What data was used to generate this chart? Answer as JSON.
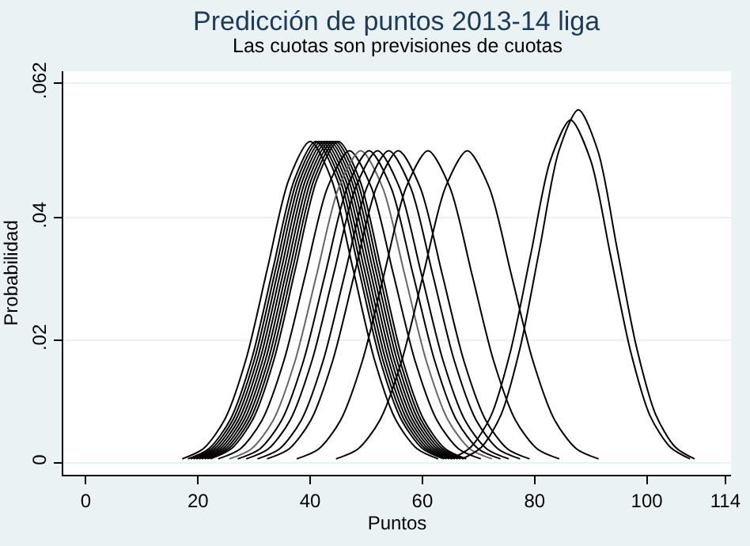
{
  "chart_data": {
    "type": "line",
    "title": "Predicción de puntos 2013-14 liga",
    "subtitle": "Las cuotas son previsiones de cuotas",
    "xlabel": "Puntos",
    "ylabel": "Probabilidad",
    "xlim": [
      -4,
      115
    ],
    "xticks": [
      0,
      20,
      40,
      60,
      80,
      100,
      114
    ],
    "ylim": [
      -0.002,
      0.064
    ],
    "yticks": [
      0,
      {
        "value": 0.02,
        "label": ".02"
      },
      {
        "value": 0.04,
        "label": ".04"
      },
      {
        "value": 0.062,
        "label": ".062"
      }
    ],
    "grid": "y",
    "marker": "none",
    "line_style": "solid",
    "series": [
      {
        "color": "#000000",
        "x": [
          17.2,
          21,
          24.8,
          28.6,
          32.4,
          36.2,
          40,
          43.8,
          47.6,
          51.4,
          55.2,
          59,
          62.8
        ],
        "values": [
          0.0006,
          0.0023,
          0.0071,
          0.017,
          0.0318,
          0.0463,
          0.0525,
          0.0463,
          0.0318,
          0.017,
          0.0071,
          0.0023,
          0.0006
        ]
      },
      {
        "color": "#000000",
        "x": [
          18.2,
          22,
          25.8,
          29.6,
          33.4,
          37.2,
          41,
          44.8,
          48.6,
          52.4,
          56.2,
          60,
          63.8
        ],
        "values": [
          0.0006,
          0.0023,
          0.0071,
          0.017,
          0.0318,
          0.0463,
          0.0525,
          0.0463,
          0.0318,
          0.017,
          0.0071,
          0.0023,
          0.0006
        ]
      },
      {
        "color": "#000000",
        "x": [
          18.7,
          22.5,
          26.3,
          30.1,
          33.9,
          37.7,
          41.5,
          45.3,
          49.1,
          52.9,
          56.7,
          60.5,
          64.3
        ],
        "values": [
          0.0006,
          0.0023,
          0.0071,
          0.017,
          0.0318,
          0.0463,
          0.0525,
          0.0463,
          0.0318,
          0.017,
          0.0071,
          0.0023,
          0.0006
        ]
      },
      {
        "color": "#000000",
        "x": [
          19.2,
          23,
          26.8,
          30.6,
          34.4,
          38.2,
          42,
          45.8,
          49.6,
          53.4,
          57.2,
          61,
          64.8
        ],
        "values": [
          0.0006,
          0.0023,
          0.0071,
          0.017,
          0.0318,
          0.0463,
          0.0525,
          0.0463,
          0.0318,
          0.017,
          0.0071,
          0.0023,
          0.0006
        ]
      },
      {
        "color": "#000000",
        "x": [
          19.7,
          23.5,
          27.3,
          31.1,
          34.9,
          38.7,
          42.5,
          46.3,
          50.1,
          53.9,
          57.7,
          61.5,
          65.3
        ],
        "values": [
          0.0006,
          0.0023,
          0.0071,
          0.017,
          0.0318,
          0.0463,
          0.0525,
          0.0463,
          0.0318,
          0.017,
          0.0071,
          0.0023,
          0.0006
        ]
      },
      {
        "color": "#000000",
        "x": [
          20.2,
          24,
          27.8,
          31.6,
          35.4,
          39.2,
          43,
          46.8,
          50.6,
          54.4,
          58.2,
          62,
          65.8
        ],
        "values": [
          0.0006,
          0.0023,
          0.0071,
          0.017,
          0.0318,
          0.0463,
          0.0525,
          0.0463,
          0.0318,
          0.017,
          0.0071,
          0.0023,
          0.0006
        ]
      },
      {
        "color": "#000000",
        "x": [
          20.7,
          24.5,
          28.3,
          32.1,
          35.9,
          39.7,
          43.5,
          47.3,
          51.1,
          54.9,
          58.7,
          62.5,
          66.3
        ],
        "values": [
          0.0006,
          0.0023,
          0.0071,
          0.017,
          0.0318,
          0.0463,
          0.0525,
          0.0463,
          0.0318,
          0.017,
          0.0071,
          0.0023,
          0.0006
        ]
      },
      {
        "color": "#000000",
        "x": [
          21.2,
          25,
          28.8,
          32.6,
          36.4,
          40.2,
          44,
          47.8,
          51.6,
          55.4,
          59.2,
          63,
          66.8
        ],
        "values": [
          0.0006,
          0.0023,
          0.0071,
          0.017,
          0.0318,
          0.0463,
          0.0525,
          0.0463,
          0.0318,
          0.017,
          0.0071,
          0.0023,
          0.0006
        ]
      },
      {
        "color": "#000000",
        "x": [
          21.7,
          25.5,
          29.3,
          33.1,
          36.9,
          40.7,
          44.5,
          48.3,
          52.1,
          55.9,
          59.7,
          63.5,
          67.3
        ],
        "values": [
          0.0006,
          0.0023,
          0.0071,
          0.017,
          0.0318,
          0.0463,
          0.0525,
          0.0463,
          0.0318,
          0.017,
          0.0071,
          0.0023,
          0.0006
        ]
      },
      {
        "color": "#000000",
        "x": [
          22.2,
          26,
          29.8,
          33.6,
          37.4,
          41.2,
          45,
          48.8,
          52.6,
          56.4,
          60.2,
          64,
          67.8
        ],
        "values": [
          0.0006,
          0.0023,
          0.0071,
          0.017,
          0.0318,
          0.0463,
          0.0525,
          0.0463,
          0.0318,
          0.017,
          0.0071,
          0.0023,
          0.0006
        ]
      },
      {
        "color": "#000000",
        "x": [
          23.6,
          27.5,
          31.4,
          35.3,
          39.2,
          43.1,
          47,
          50.9,
          54.8,
          58.7,
          62.6,
          66.5,
          70.4
        ],
        "values": [
          0.0006,
          0.0022,
          0.0069,
          0.0166,
          0.0309,
          0.045,
          0.051,
          0.045,
          0.0309,
          0.0166,
          0.0069,
          0.0022,
          0.0006
        ]
      },
      {
        "color": "#666666",
        "x": [
          25.6,
          29.5,
          33.4,
          37.3,
          41.2,
          45.1,
          49,
          52.9,
          56.8,
          60.7,
          64.6,
          68.5,
          72.4
        ],
        "values": [
          0.0006,
          0.0022,
          0.0069,
          0.0166,
          0.0309,
          0.045,
          0.051,
          0.045,
          0.0309,
          0.0166,
          0.0069,
          0.0022,
          0.0006
        ]
      },
      {
        "color": "#000000",
        "x": [
          27.1,
          31,
          34.9,
          38.8,
          42.7,
          46.6,
          50.5,
          54.4,
          58.3,
          62.2,
          66.1,
          70,
          73.9
        ],
        "values": [
          0.0006,
          0.0022,
          0.0069,
          0.0166,
          0.0309,
          0.045,
          0.051,
          0.045,
          0.0309,
          0.0166,
          0.0069,
          0.0022,
          0.0006
        ]
      },
      {
        "color": "#000000",
        "x": [
          28.6,
          32.5,
          36.4,
          40.3,
          44.2,
          48.1,
          52,
          55.9,
          59.8,
          63.7,
          67.6,
          71.5,
          75.4
        ],
        "values": [
          0.0006,
          0.0022,
          0.0069,
          0.0166,
          0.0309,
          0.045,
          0.051,
          0.045,
          0.0309,
          0.0166,
          0.0069,
          0.0022,
          0.0006
        ]
      },
      {
        "color": "#000000",
        "x": [
          30.6,
          34.5,
          38.4,
          42.3,
          46.2,
          50.1,
          54,
          57.9,
          61.8,
          65.7,
          69.6,
          73.5,
          77.4
        ],
        "values": [
          0.0006,
          0.0022,
          0.0069,
          0.0166,
          0.0309,
          0.045,
          0.051,
          0.045,
          0.0309,
          0.0166,
          0.0069,
          0.0022,
          0.0006
        ]
      },
      {
        "color": "#000000",
        "x": [
          32.3,
          36.2,
          40.1,
          44,
          47.9,
          51.8,
          55.7,
          59.6,
          63.5,
          67.4,
          71.3,
          75.2,
          79.1
        ],
        "values": [
          0.0006,
          0.0022,
          0.0069,
          0.0166,
          0.0309,
          0.045,
          0.051,
          0.045,
          0.0309,
          0.0166,
          0.0069,
          0.0022,
          0.0006
        ]
      },
      {
        "color": "#000000",
        "x": [
          37.6,
          41.5,
          45.4,
          49.3,
          53.2,
          57.1,
          61,
          64.9,
          68.8,
          72.7,
          76.6,
          80.5,
          84.4
        ],
        "values": [
          0.0006,
          0.0022,
          0.0069,
          0.0166,
          0.0309,
          0.045,
          0.051,
          0.045,
          0.0309,
          0.0166,
          0.0069,
          0.0022,
          0.0006
        ]
      },
      {
        "color": "#000000",
        "x": [
          44.6,
          48.5,
          52.4,
          56.3,
          60.2,
          64.1,
          68,
          71.9,
          75.8,
          79.7,
          83.6,
          87.5,
          91.4
        ],
        "values": [
          0.0006,
          0.0022,
          0.0069,
          0.0166,
          0.0309,
          0.045,
          0.051,
          0.045,
          0.0309,
          0.0166,
          0.0069,
          0.0022,
          0.0006
        ]
      },
      {
        "color": "#000000",
        "x": [
          65.1,
          68.6,
          72.2,
          75.7,
          79.3,
          82.8,
          86.4,
          90,
          93.5,
          97.1,
          100.6,
          104.2,
          107.7
        ],
        "values": [
          0.0006,
          0.0025,
          0.0076,
          0.0182,
          0.034,
          0.0494,
          0.056,
          0.0494,
          0.034,
          0.0182,
          0.0076,
          0.0025,
          0.0006
        ]
      },
      {
        "color": "#000000",
        "x": [
          67.1,
          70.5,
          74,
          77.4,
          80.9,
          84.3,
          87.8,
          91.3,
          94.7,
          98.2,
          101.6,
          105.1,
          108.5
        ],
        "values": [
          0.0006,
          0.0025,
          0.0078,
          0.0187,
          0.035,
          0.0509,
          0.0577,
          0.0509,
          0.035,
          0.0187,
          0.0078,
          0.0025,
          0.0006
        ]
      }
    ]
  }
}
